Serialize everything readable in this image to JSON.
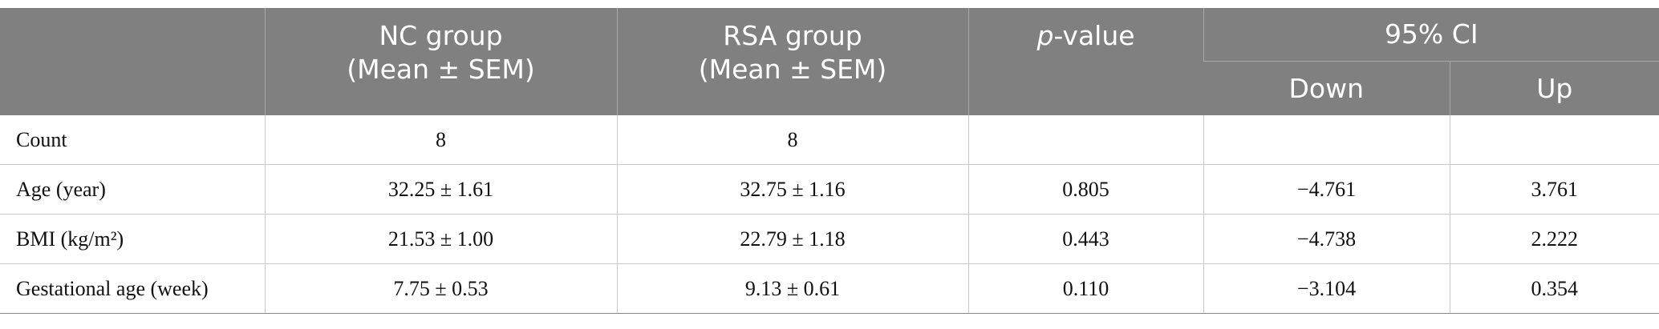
{
  "header": {
    "nc": [
      "NC group",
      "(Mean ± SEM)"
    ],
    "rsa": [
      "RSA group",
      "(Mean ± SEM)"
    ],
    "p_value": {
      "italic": "p",
      "rest": "-value"
    },
    "ci": "95% CI",
    "down": "Down",
    "up": "Up"
  },
  "table": {
    "rows": [
      [
        "Count",
        "8",
        "8"
      ],
      [
        "Age (year)",
        "32.25 ± 1.61",
        "32.75 ± 1.16",
        "0.805",
        "−4.761",
        "3.761"
      ],
      [
        "BMI (kg/m²)",
        "21.53 ± 1.00",
        "22.79 ± 1.18",
        "0.443",
        "−4.738",
        "2.222"
      ],
      [
        "Gestational age (week)",
        "7.75 ± 0.53",
        "9.13 ± 0.61",
        "0.110",
        "−3.104",
        "0.354"
      ]
    ]
  }
}
